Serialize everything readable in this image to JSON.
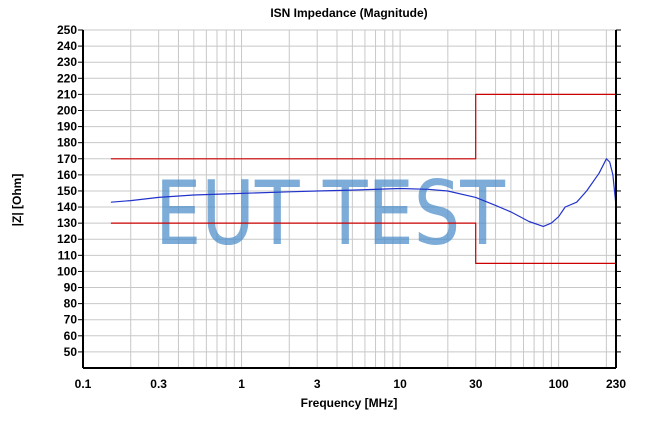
{
  "chart_data": {
    "type": "line",
    "title": "ISN Impedance (Magnitude)",
    "xlabel": "Frequency [MHz]",
    "ylabel": "|Z| [Ohm]",
    "xscale": "log",
    "xlim": [
      0.1,
      230
    ],
    "ylim": [
      40,
      250
    ],
    "xticks": [
      "0.1",
      "0.3",
      "1",
      "3",
      "10",
      "30",
      "100",
      "230"
    ],
    "xtick_values": [
      0.1,
      0.3,
      1,
      3,
      10,
      30,
      100,
      230
    ],
    "yticks": [
      50,
      60,
      70,
      80,
      90,
      100,
      110,
      120,
      130,
      140,
      150,
      160,
      170,
      180,
      190,
      200,
      210,
      220,
      230,
      240,
      250
    ],
    "grid": true,
    "watermark": "EUT TEST",
    "colors": {
      "measurement": "#2233cc",
      "limits": "#cc0000",
      "watermark": "#4a8cc8",
      "grid": "#c8c8c8"
    },
    "series": [
      {
        "role": "measurement",
        "x": [
          0.15,
          0.2,
          0.3,
          0.5,
          1,
          2,
          3,
          5,
          10,
          15,
          20,
          30,
          40,
          50,
          65,
          80,
          90,
          100,
          110,
          130,
          150,
          180,
          200,
          210,
          220,
          225,
          230
        ],
        "y": [
          143,
          144,
          146,
          147.5,
          148.5,
          149.5,
          150,
          150.5,
          151.5,
          151,
          150,
          146,
          141,
          137,
          131,
          128,
          130,
          134,
          140,
          143,
          150,
          161,
          170,
          168,
          160,
          150,
          141
        ]
      },
      {
        "role": "upper-limit",
        "x": [
          0.15,
          30,
          30,
          230
        ],
        "y": [
          170,
          170,
          210,
          210
        ]
      },
      {
        "role": "lower-limit",
        "x": [
          0.15,
          30,
          30,
          230
        ],
        "y": [
          130,
          130,
          105,
          105
        ]
      }
    ]
  }
}
